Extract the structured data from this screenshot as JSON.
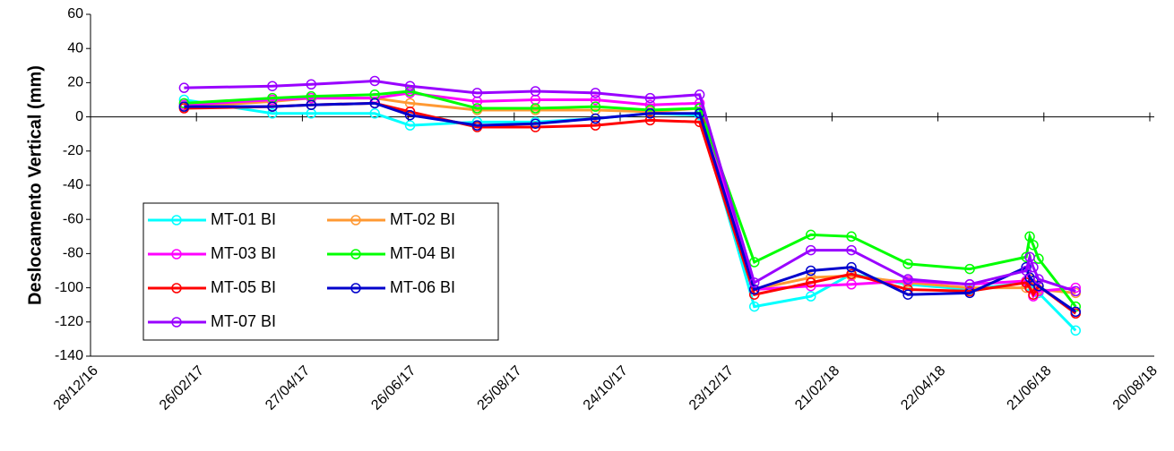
{
  "chart_data": {
    "type": "line",
    "y_label": "Deslocamento Vertical (mm)",
    "x": [
      "2017-02-19",
      "2017-04-10",
      "2017-05-02",
      "2017-06-07",
      "2017-06-27",
      "2017-08-04",
      "2017-09-06",
      "2017-10-10",
      "2017-11-10",
      "2017-12-08",
      "2018-01-08",
      "2018-02-09",
      "2018-03-04",
      "2018-04-05",
      "2018-05-10",
      "2018-06-11",
      "2018-06-13",
      "2018-06-15",
      "2018-06-18",
      "2018-07-09"
    ],
    "series": [
      {
        "name": "MT-01 BI",
        "color": "#00ffff",
        "values": [
          10,
          2,
          2,
          2,
          -5,
          -3,
          -3,
          -1,
          2,
          1,
          -111,
          -105,
          -92,
          -98,
          -101,
          -97,
          -99,
          -100,
          -103,
          -125
        ]
      },
      {
        "name": "MT-02 BI",
        "color": "#ff9933",
        "values": [
          6,
          9,
          11,
          11,
          8,
          4,
          4,
          4,
          3,
          5,
          -101,
          -94,
          -93,
          -97,
          -100,
          -100,
          -95,
          -98,
          -101,
          -103
        ]
      },
      {
        "name": "MT-03 BI",
        "color": "#ff00ff",
        "values": [
          7,
          10,
          11,
          11,
          14,
          9,
          10,
          10,
          7,
          8,
          -101,
          -99,
          -98,
          -96,
          -98,
          -96,
          -100,
          -105,
          -102,
          -100
        ]
      },
      {
        "name": "MT-04 BI",
        "color": "#00ff00",
        "values": [
          8,
          11,
          12,
          13,
          15,
          5,
          5,
          6,
          4,
          5,
          -85,
          -69,
          -70,
          -86,
          -89,
          -82,
          -70,
          -75,
          -83,
          -111
        ]
      },
      {
        "name": "MT-05 BI",
        "color": "#ff0000",
        "values": [
          5,
          6,
          7,
          8,
          3,
          -6,
          -6,
          -5,
          -2,
          -3,
          -104,
          -97,
          -92,
          -101,
          -102,
          -97,
          -100,
          -104,
          -99,
          -115
        ]
      },
      {
        "name": "MT-06 BI",
        "color": "#0000cc",
        "values": [
          6,
          6,
          7,
          8,
          1,
          -5,
          -4,
          -1,
          2,
          2,
          -101,
          -90,
          -88,
          -104,
          -103,
          -88,
          -94,
          -96,
          -99,
          -114
        ]
      },
      {
        "name": "MT-07 BI",
        "color": "#9900ff",
        "values": [
          17,
          18,
          19,
          21,
          18,
          14,
          15,
          14,
          11,
          13,
          -97,
          -78,
          -78,
          -95,
          -98,
          -90,
          -82,
          -88,
          -95,
          -102
        ]
      }
    ],
    "xlim": [
      "2016-12-28",
      "2018-08-20"
    ],
    "xticks": [
      {
        "value": "2016-12-28",
        "label": "28/12/16"
      },
      {
        "value": "2017-02-26",
        "label": "26/02/17"
      },
      {
        "value": "2017-04-27",
        "label": "27/04/17"
      },
      {
        "value": "2017-06-26",
        "label": "26/06/17"
      },
      {
        "value": "2017-08-25",
        "label": "25/08/17"
      },
      {
        "value": "2017-10-24",
        "label": "24/10/17"
      },
      {
        "value": "2017-12-23",
        "label": "23/12/17"
      },
      {
        "value": "2018-02-21",
        "label": "21/02/18"
      },
      {
        "value": "2018-04-22",
        "label": "22/04/18"
      },
      {
        "value": "2018-06-21",
        "label": "21/06/18"
      },
      {
        "value": "2018-08-20",
        "label": "20/08/18"
      }
    ],
    "ylim": [
      -140,
      60
    ],
    "yticks": [
      -140,
      -120,
      -100,
      -80,
      -60,
      -40,
      -20,
      0,
      20,
      40,
      60
    ],
    "grid": false,
    "legend": "lower left"
  }
}
